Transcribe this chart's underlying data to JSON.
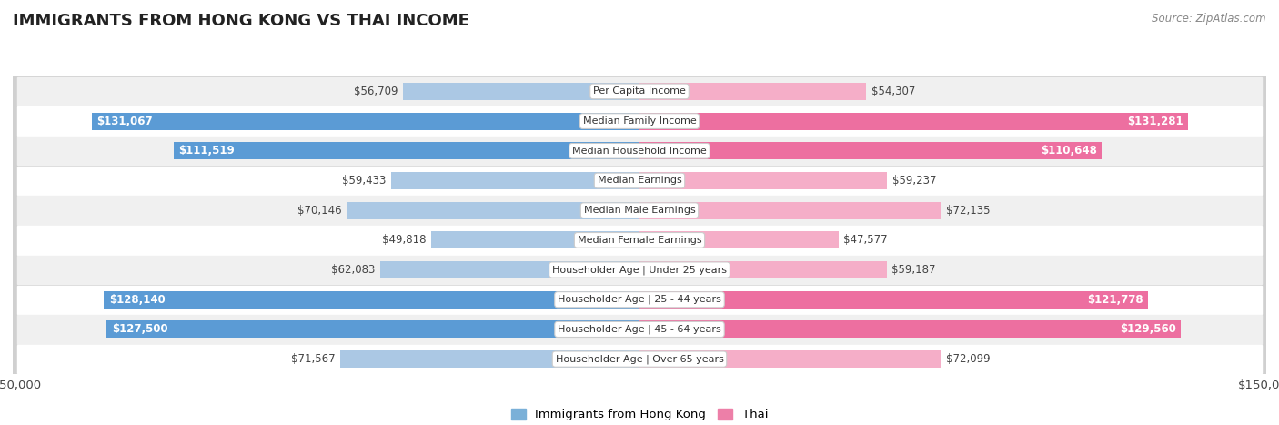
{
  "title": "IMMIGRANTS FROM HONG KONG VS THAI INCOME",
  "source": "Source: ZipAtlas.com",
  "categories": [
    "Per Capita Income",
    "Median Family Income",
    "Median Household Income",
    "Median Earnings",
    "Median Male Earnings",
    "Median Female Earnings",
    "Householder Age | Under 25 years",
    "Householder Age | 25 - 44 years",
    "Householder Age | 45 - 64 years",
    "Householder Age | Over 65 years"
  ],
  "hk_values": [
    56709,
    131067,
    111519,
    59433,
    70146,
    49818,
    62083,
    128140,
    127500,
    71567
  ],
  "thai_values": [
    54307,
    131281,
    110648,
    59237,
    72135,
    47577,
    59187,
    121778,
    129560,
    72099
  ],
  "hk_labels": [
    "$56,709",
    "$131,067",
    "$111,519",
    "$59,433",
    "$70,146",
    "$49,818",
    "$62,083",
    "$128,140",
    "$127,500",
    "$71,567"
  ],
  "thai_labels": [
    "$54,307",
    "$131,281",
    "$110,648",
    "$59,237",
    "$72,135",
    "$47,577",
    "$59,187",
    "$121,778",
    "$129,560",
    "$72,099"
  ],
  "hk_color_light": "#abc8e4",
  "hk_color_dark": "#5b9bd5",
  "thai_color_light": "#f5aec8",
  "thai_color_dark": "#ed6fa0",
  "max_value": 150000,
  "bar_height": 0.58,
  "row_bg_odd": "#f0f0f0",
  "row_bg_even": "#ffffff",
  "row_border_color": "#d0d0d0",
  "legend_hk_color": "#7ab0d8",
  "legend_thai_color": "#ed7fa8",
  "inside_threshold": 80000,
  "label_fontsize": 8.5,
  "category_fontsize": 8.0,
  "title_fontsize": 13,
  "source_fontsize": 8.5
}
